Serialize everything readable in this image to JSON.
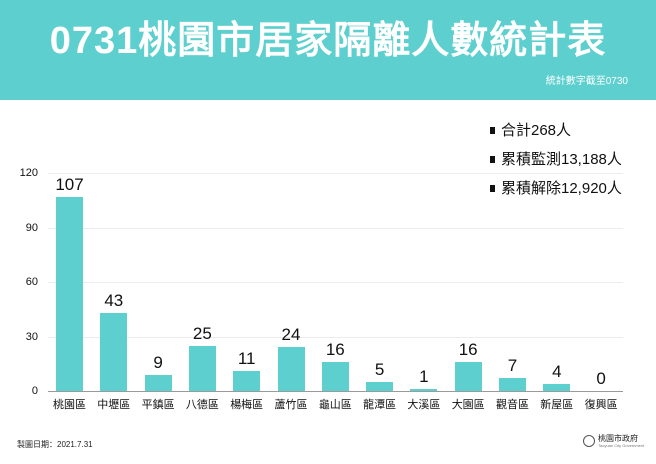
{
  "header": {
    "title": "0731桃園市居家隔離人數統計表",
    "subtitle": "統計數字截至0730",
    "background_color": "#5ecfcf"
  },
  "summary": {
    "items": [
      {
        "label": "合計268人"
      },
      {
        "label": "累積監測13,188人"
      },
      {
        "label": "累積解除12,920人"
      }
    ]
  },
  "footer": {
    "date_label": "製圖日期：2021.7.31",
    "logo_name": "桃園市政府",
    "logo_subtext": "Taoyuan City Government"
  },
  "chart_data": {
    "type": "bar",
    "title": "0731桃園市居家隔離人數統計表",
    "xlabel": "",
    "ylabel": "",
    "categories": [
      "桃園區",
      "中壢區",
      "平鎮區",
      "八德區",
      "楊梅區",
      "蘆竹區",
      "龜山區",
      "龍潭區",
      "大溪區",
      "大園區",
      "觀音區",
      "新屋區",
      "復興區"
    ],
    "values": [
      107,
      43,
      9,
      25,
      11,
      24,
      16,
      5,
      1,
      16,
      7,
      4,
      0
    ],
    "yticks": [
      0,
      30,
      60,
      90,
      120
    ],
    "ylim": [
      0,
      120
    ],
    "grid": true,
    "legend": "none",
    "bar_color": "#5ecfcf",
    "data_labels": true
  }
}
